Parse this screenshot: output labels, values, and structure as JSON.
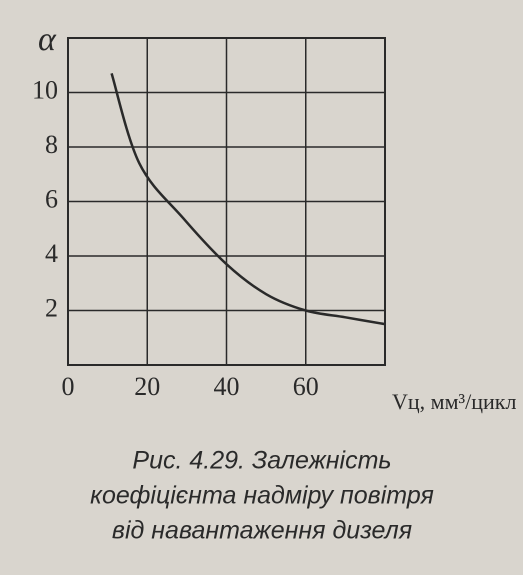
{
  "chart_data": {
    "type": "line",
    "y_label": "α",
    "x_label": "Vц, мм³/цикл",
    "caption": [
      "Рис. 4.29. Залежність",
      "коефіцієнта надміру повітря",
      "від навантаження дизеля"
    ],
    "x": [
      11,
      18,
      29,
      40,
      50,
      60,
      70,
      80
    ],
    "series": [
      {
        "color": "#2a2a2a",
        "values": [
          10.7,
          7.4,
          5.4,
          3.7,
          2.6,
          2.0,
          1.75,
          1.5
        ]
      }
    ],
    "xlim": [
      0,
      80
    ],
    "xticks": [
      0,
      20,
      40,
      60
    ],
    "ylim": [
      0,
      12
    ],
    "yticks": [
      2,
      4,
      6,
      8,
      10
    ],
    "grid": true
  }
}
